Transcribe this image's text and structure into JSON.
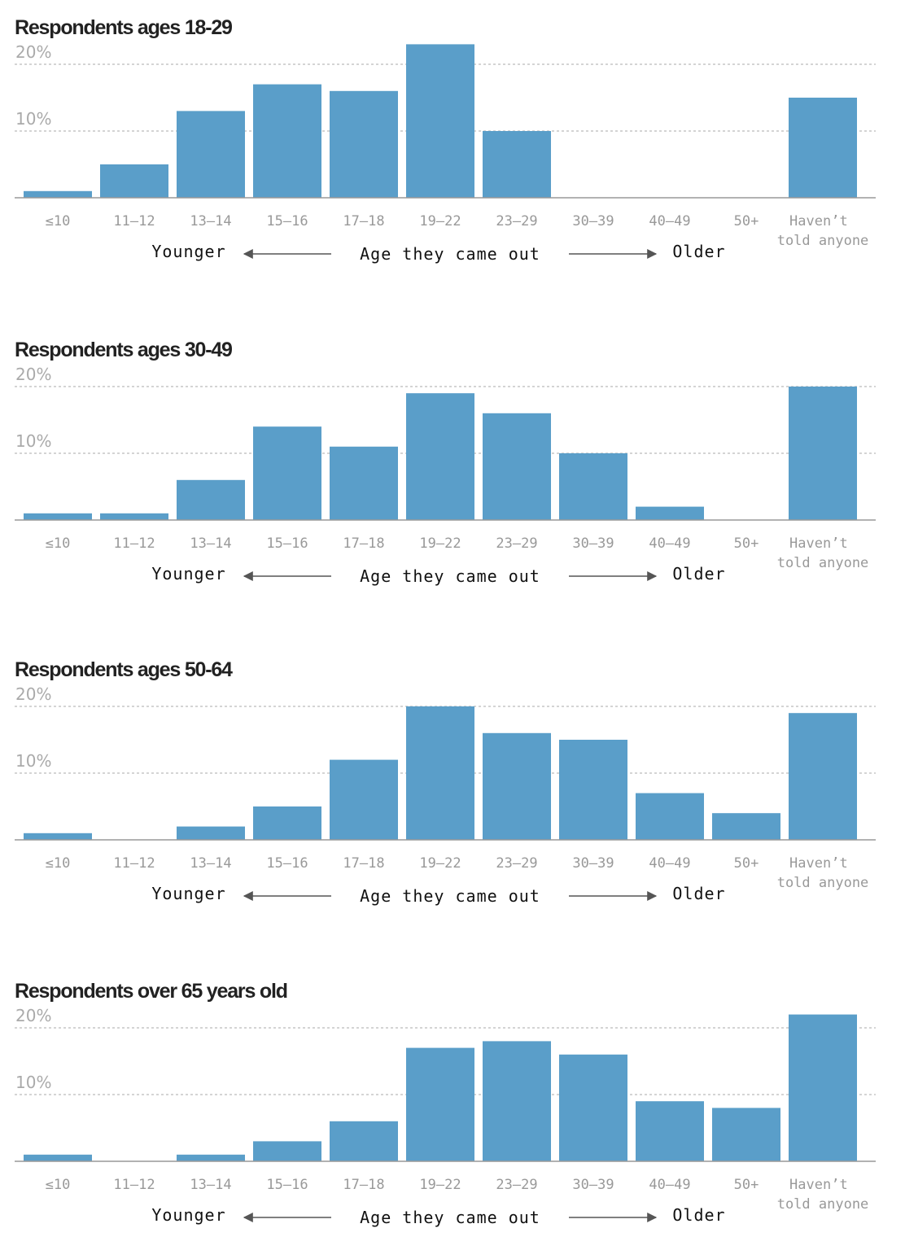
{
  "chart_data": [
    {
      "type": "bar",
      "title": "Respondents ages 18-29",
      "categories": [
        "≤10",
        "11–12",
        "13–14",
        "15–16",
        "17–18",
        "19–22",
        "23–29",
        "30–39",
        "40–49",
        "50+",
        "Haven’t told anyone"
      ],
      "values": [
        1,
        5,
        13,
        17,
        16,
        23,
        10,
        0,
        0,
        0,
        15
      ],
      "color": "#5a9ec9",
      "ylim": [
        0,
        24
      ],
      "yticks": [
        {
          "value": 10,
          "label": "10%"
        },
        {
          "value": 20,
          "label": "20%"
        }
      ],
      "grid": true,
      "annotations": [
        "Younger",
        "Age they came out",
        "Older"
      ]
    },
    {
      "type": "bar",
      "title": "Respondents ages 30-49",
      "categories": [
        "≤10",
        "11–12",
        "13–14",
        "15–16",
        "17–18",
        "19–22",
        "23–29",
        "30–39",
        "40–49",
        "50+",
        "Haven’t told anyone"
      ],
      "values": [
        1,
        1,
        6,
        14,
        11,
        19,
        16,
        10,
        2,
        0,
        20
      ],
      "color": "#5a9ec9",
      "ylim": [
        0,
        24
      ],
      "yticks": [
        {
          "value": 10,
          "label": "10%"
        },
        {
          "value": 20,
          "label": "20%"
        }
      ],
      "grid": true,
      "annotations": [
        "Younger",
        "Age they came out",
        "Older"
      ]
    },
    {
      "type": "bar",
      "title": "Respondents ages 50-64",
      "categories": [
        "≤10",
        "11–12",
        "13–14",
        "15–16",
        "17–18",
        "19–22",
        "23–29",
        "30–39",
        "40–49",
        "50+",
        "Haven’t told anyone"
      ],
      "values": [
        1,
        0,
        2,
        5,
        12,
        20,
        16,
        15,
        7,
        4,
        19
      ],
      "color": "#5a9ec9",
      "ylim": [
        0,
        24
      ],
      "yticks": [
        {
          "value": 10,
          "label": "10%"
        },
        {
          "value": 20,
          "label": "20%"
        }
      ],
      "grid": true,
      "annotations": [
        "Younger",
        "Age they came out",
        "Older"
      ]
    },
    {
      "type": "bar",
      "title": "Respondents over 65 years old",
      "categories": [
        "≤10",
        "11–12",
        "13–14",
        "15–16",
        "17–18",
        "19–22",
        "23–29",
        "30–39",
        "40–49",
        "50+",
        "Haven’t told anyone"
      ],
      "values": [
        1,
        0,
        1,
        3,
        6,
        17,
        18,
        16,
        9,
        8,
        22
      ],
      "color": "#5a9ec9",
      "ylim": [
        0,
        24
      ],
      "yticks": [
        {
          "value": 10,
          "label": "10%"
        },
        {
          "value": 20,
          "label": "20%"
        }
      ],
      "grid": true,
      "annotations": [
        "Younger",
        "Age they came out",
        "Older"
      ]
    }
  ]
}
